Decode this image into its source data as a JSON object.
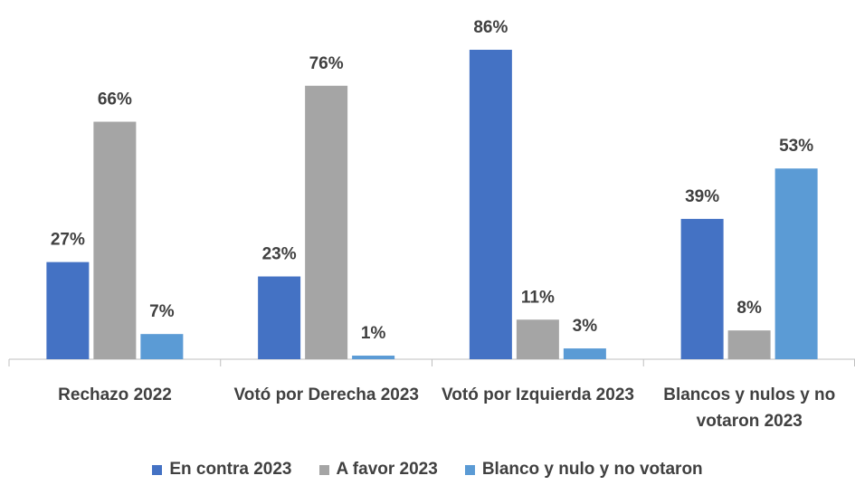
{
  "chart_data": {
    "type": "bar",
    "categories": [
      "Rechazo 2022",
      "Votó por Derecha 2023",
      "Votó por Izquierda 2023",
      "Blancos y nulos y no votaron 2023"
    ],
    "series": [
      {
        "name": "En contra 2023",
        "color": "#4472c4",
        "values": [
          27,
          23,
          86,
          39
        ],
        "value_labels": [
          "27%",
          "23%",
          "86%",
          "39%"
        ]
      },
      {
        "name": "A favor 2023",
        "color": "#a5a5a5",
        "values": [
          66,
          76,
          11,
          8
        ],
        "value_labels": [
          "66%",
          "76%",
          "11%",
          "8%"
        ]
      },
      {
        "name": "Blanco y nulo y no votaron",
        "color": "#5b9bd5",
        "values": [
          7,
          1,
          3,
          53
        ],
        "value_labels": [
          "7%",
          "1%",
          "3%",
          "53%"
        ]
      }
    ],
    "legend": "bottom"
  }
}
